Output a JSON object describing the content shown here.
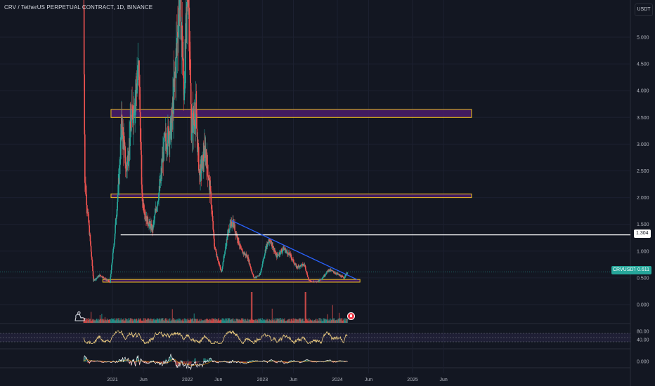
{
  "header": {
    "title": "CRV / TetherUS PERPETUAL CONTRACT, 1D, BINANCE"
  },
  "currency_button": "USDT",
  "price_labels": {
    "level_value": "1.304",
    "symbol": "CRVUSDT.P",
    "last_price": "0.611"
  },
  "colors": {
    "background": "#131722",
    "up": "#26a69a",
    "down": "#ef5350",
    "zone_fill": "#4a1c6b",
    "zone_border": "#f0c020",
    "trendline": "#2962ff",
    "level_line": "#ffffff",
    "rsi_line": "#f0d080",
    "macd_line": "#ffffff",
    "signal_line": "#ff9800"
  },
  "icons": {
    "logo": "dinosaur-icon",
    "marker": "flag-marker-icon"
  },
  "chart_data": [
    {
      "type": "candlestick",
      "title": "CRV / TetherUS PERPETUAL CONTRACT, 1D, BINANCE",
      "ylim": [
        -0.35,
        5.8
      ],
      "y_ticks": [
        "5.000",
        "4.500",
        "4.000",
        "3.500",
        "3.000",
        "2.500",
        "2.000",
        "1.500",
        "1.000",
        "0.500",
        "0.000"
      ],
      "y_tick_values": [
        5,
        4.5,
        4,
        3.5,
        3,
        2.5,
        2,
        1.5,
        1,
        0.5,
        0
      ],
      "x_ticks": [
        "2021",
        "Jun",
        "2022",
        "Jun",
        "2023",
        "Jun",
        "2024",
        "Jun",
        "2025",
        "Jun"
      ],
      "x_tick_dates": [
        "2021-01-01",
        "2021-06-01",
        "2022-01-01",
        "2022-06-01",
        "2023-01-01",
        "2023-06-01",
        "2024-01-01",
        "2024-06-01",
        "2025-01-01",
        "2025-06-01"
      ],
      "price_path": [
        [
          "2020-08-14",
          5.6
        ],
        [
          "2020-08-20",
          2.3
        ],
        [
          "2020-09-10",
          1.4
        ],
        [
          "2020-10-01",
          0.45
        ],
        [
          "2020-11-01",
          0.55
        ],
        [
          "2020-12-20",
          0.42
        ],
        [
          "2021-01-10",
          1.2
        ],
        [
          "2021-02-01",
          2.3
        ],
        [
          "2021-02-15",
          3.4
        ],
        [
          "2021-03-10",
          2.5
        ],
        [
          "2021-04-05",
          3.5
        ],
        [
          "2021-05-10",
          4.4
        ],
        [
          "2021-05-25",
          2.0
        ],
        [
          "2021-06-15",
          1.6
        ],
        [
          "2021-07-15",
          1.4
        ],
        [
          "2021-08-20",
          2.2
        ],
        [
          "2021-09-10",
          3.0
        ],
        [
          "2021-10-15",
          3.3
        ],
        [
          "2021-11-10",
          4.8
        ],
        [
          "2021-11-25",
          6.0
        ],
        [
          "2021-12-15",
          4.0
        ],
        [
          "2022-01-05",
          6.1
        ],
        [
          "2022-01-20",
          3.3
        ],
        [
          "2022-02-10",
          3.6
        ],
        [
          "2022-03-01",
          2.4
        ],
        [
          "2022-03-30",
          2.9
        ],
        [
          "2022-04-25",
          2.0
        ],
        [
          "2022-05-12",
          1.1
        ],
        [
          "2022-06-15",
          0.6
        ],
        [
          "2022-07-20",
          1.4
        ],
        [
          "2022-08-10",
          1.55
        ],
        [
          "2022-09-20",
          1.0
        ],
        [
          "2022-10-20",
          0.9
        ],
        [
          "2022-11-20",
          0.5
        ],
        [
          "2022-12-20",
          0.55
        ],
        [
          "2023-01-20",
          1.1
        ],
        [
          "2023-02-10",
          1.2
        ],
        [
          "2023-03-10",
          0.9
        ],
        [
          "2023-04-15",
          1.05
        ],
        [
          "2023-05-20",
          0.9
        ],
        [
          "2023-06-15",
          0.7
        ],
        [
          "2023-07-25",
          0.75
        ],
        [
          "2023-08-15",
          0.45
        ],
        [
          "2023-09-20",
          0.42
        ],
        [
          "2023-10-20",
          0.5
        ],
        [
          "2023-11-20",
          0.65
        ],
        [
          "2023-12-20",
          0.6
        ],
        [
          "2024-01-10",
          0.55
        ],
        [
          "2024-02-01",
          0.5
        ],
        [
          "2024-02-20",
          0.61
        ]
      ],
      "zones": [
        {
          "from": "2020-12-25",
          "to": "2025-10-15",
          "low": 3.5,
          "high": 3.65
        },
        {
          "from": "2020-12-25",
          "to": "2025-10-15",
          "low": 2.0,
          "high": 2.07
        },
        {
          "from": "2020-11-15",
          "to": "2024-04-20",
          "low": 0.42,
          "high": 0.47
        }
      ],
      "horizontal_level": {
        "value": 1.304,
        "from": "2021-02-10"
      },
      "trendline": {
        "from": [
          "2022-08-05",
          1.57
        ],
        "to": [
          "2024-04-05",
          0.47
        ]
      },
      "last_price": 0.611
    },
    {
      "type": "bar",
      "title": "Volume"
    },
    {
      "type": "line",
      "title": "RSI",
      "y_ticks": [
        "80.00",
        "40.00"
      ],
      "y_tick_values": [
        80,
        40
      ],
      "band": [
        30,
        70
      ],
      "ylim": [
        0,
        100
      ]
    },
    {
      "type": "line",
      "title": "MACD",
      "y_ticks": [
        "0.000"
      ],
      "y_tick_values": [
        0
      ]
    }
  ]
}
